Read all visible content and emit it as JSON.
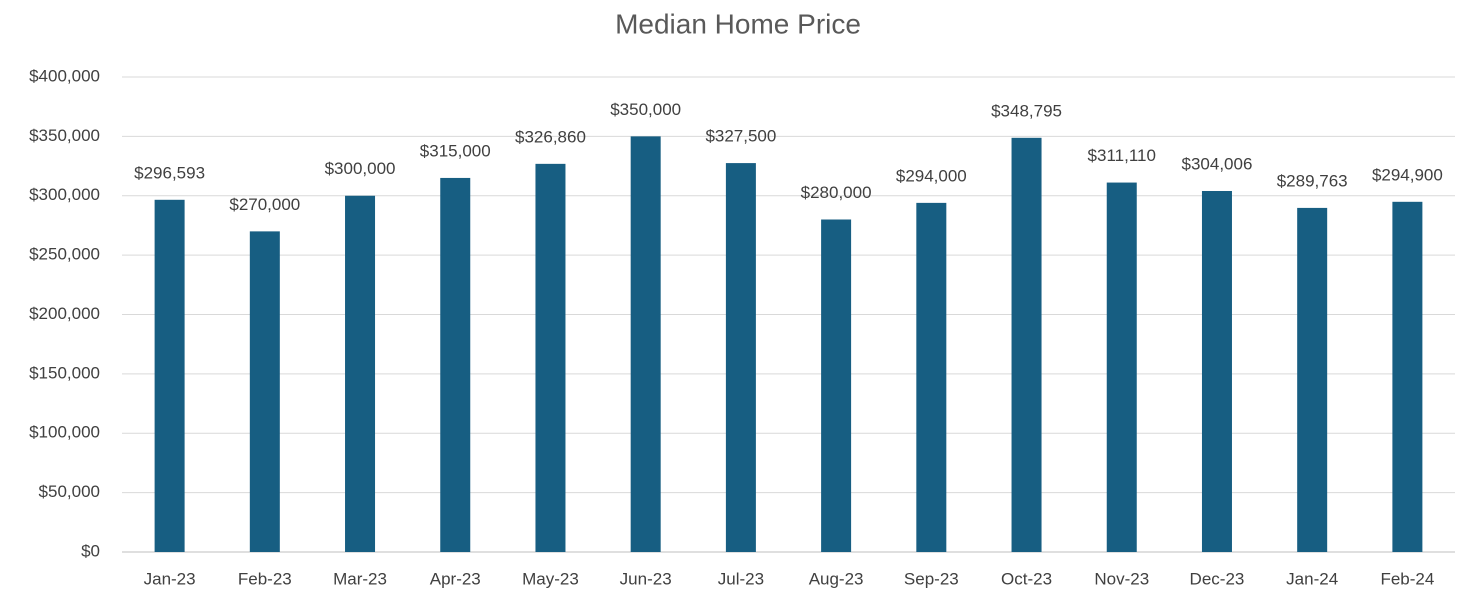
{
  "chart_data": {
    "type": "bar",
    "title": "Median Home Price",
    "categories": [
      "Jan-23",
      "Feb-23",
      "Mar-23",
      "Apr-23",
      "May-23",
      "Jun-23",
      "Jul-23",
      "Aug-23",
      "Sep-23",
      "Oct-23",
      "Nov-23",
      "Dec-23",
      "Jan-24",
      "Feb-24"
    ],
    "values": [
      296593,
      270000,
      300000,
      315000,
      326860,
      350000,
      327500,
      280000,
      294000,
      348795,
      311110,
      304006,
      289763,
      294900
    ],
    "value_labels": [
      "$296,593",
      "$270,000",
      "$300,000",
      "$315,000",
      "$326,860",
      "$350,000",
      "$327,500",
      "$280,000",
      "$294,000",
      "$348,795",
      "$311,110",
      "$304,006",
      "$289,763",
      "$294,900"
    ],
    "color": "#175e82",
    "ylim": [
      0,
      400000
    ],
    "yticks": [
      {
        "value": 0,
        "label": "$0"
      },
      {
        "value": 50000,
        "label": "$50,000"
      },
      {
        "value": 100000,
        "label": "$100,000"
      },
      {
        "value": 150000,
        "label": "$150,000"
      },
      {
        "value": 200000,
        "label": "$200,000"
      },
      {
        "value": 250000,
        "label": "$250,000"
      },
      {
        "value": 300000,
        "label": "$300,000"
      },
      {
        "value": 350000,
        "label": "$350,000"
      },
      {
        "value": 400000,
        "label": "$400,000"
      }
    ],
    "grid": true
  }
}
